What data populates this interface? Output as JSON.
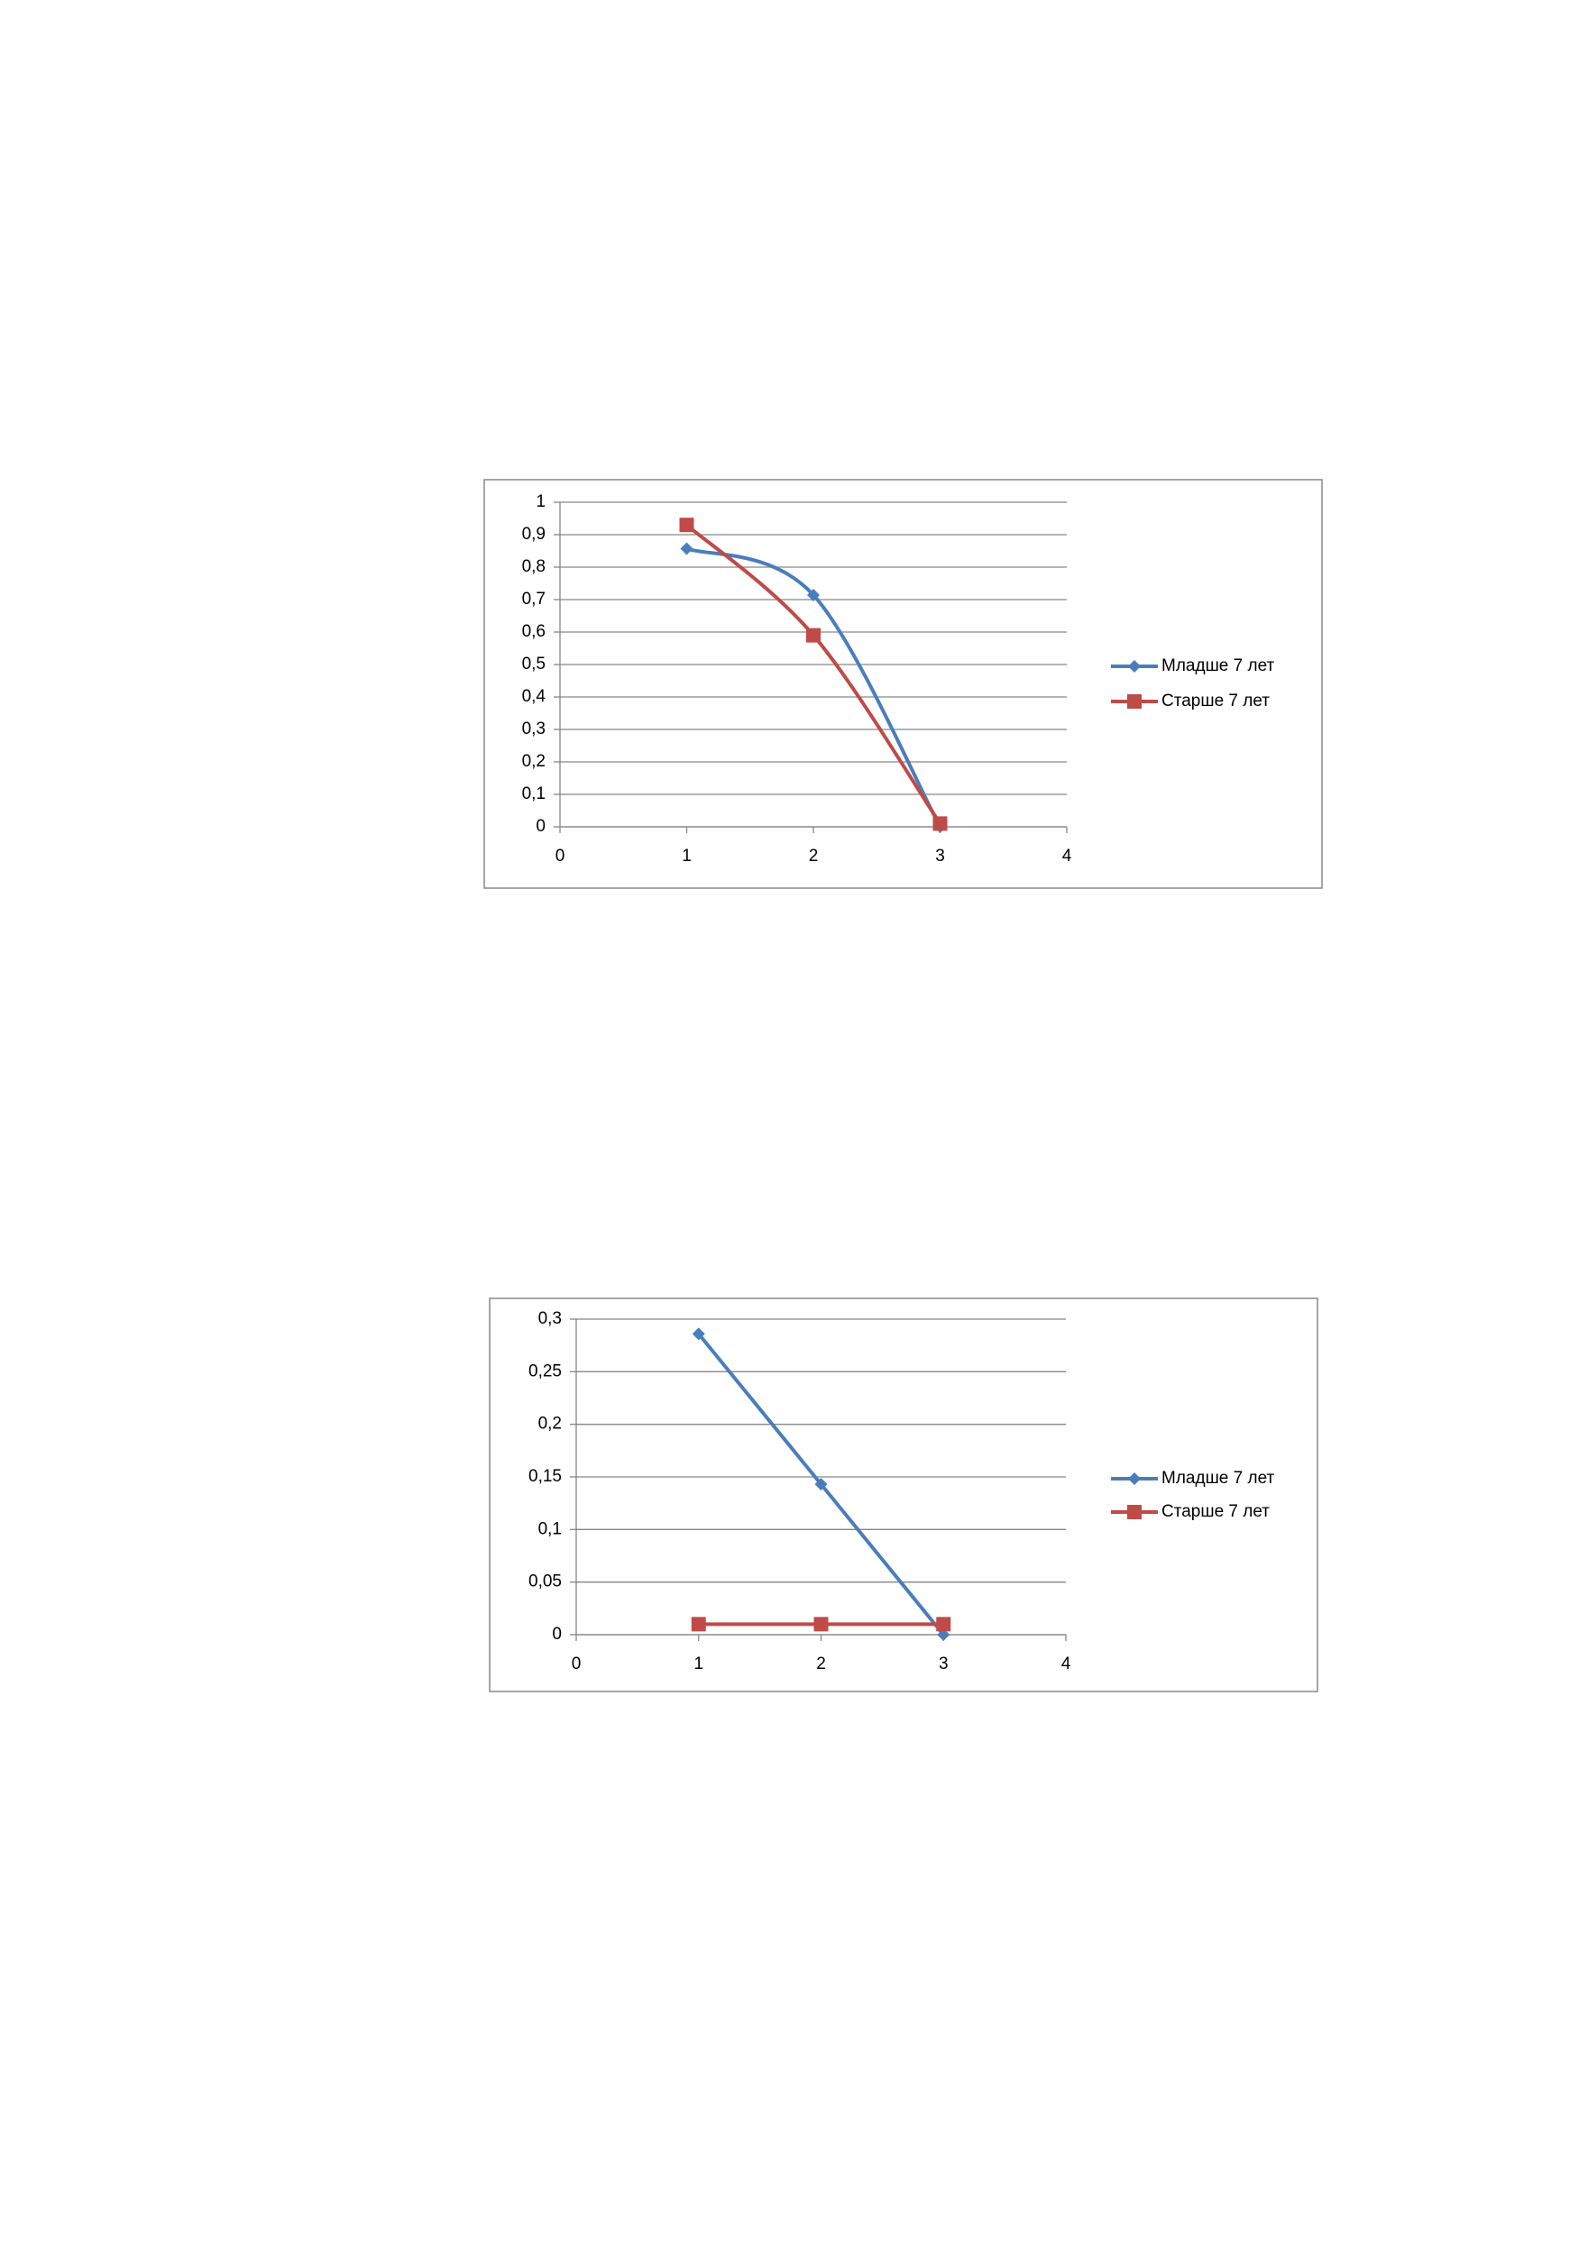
{
  "chart_data": [
    {
      "type": "line",
      "smooth": true,
      "x": [
        1,
        2,
        3
      ],
      "series": [
        {
          "name": "Младше 7 лет",
          "color": "#4a7ebb",
          "marker": "diamond",
          "values": [
            0.857,
            0.714,
            0
          ]
        },
        {
          "name": "Старше 7 лет",
          "color": "#be4b48",
          "marker": "square",
          "values": [
            0.93,
            0.59,
            0.01
          ]
        }
      ],
      "xlim": [
        0,
        4
      ],
      "xticks": [
        0,
        1,
        2,
        3,
        4
      ],
      "ylim": [
        0,
        1
      ],
      "yticks": [
        0,
        {
          "value": 0.1,
          "label": "0,1"
        },
        {
          "value": 0.2,
          "label": "0,2"
        },
        {
          "value": 0.3,
          "label": "0,3"
        },
        {
          "value": 0.4,
          "label": "0,4"
        },
        {
          "value": 0.5,
          "label": "0,5"
        },
        {
          "value": 0.6,
          "label": "0,6"
        },
        {
          "value": 0.7,
          "label": "0,7"
        },
        {
          "value": 0.8,
          "label": "0,8"
        },
        {
          "value": 0.9,
          "label": "0,9"
        },
        1
      ],
      "grid": true,
      "legend": "right"
    },
    {
      "type": "line",
      "smooth": false,
      "x": [
        1,
        2,
        3
      ],
      "series": [
        {
          "name": "Младше 7 лет",
          "color": "#4a7ebb",
          "marker": "diamond",
          "values": [
            0.286,
            0.143,
            0
          ]
        },
        {
          "name": "Старше 7 лет",
          "color": "#be4b48",
          "marker": "square",
          "values": [
            0.01,
            0.01,
            0.01
          ]
        }
      ],
      "xlim": [
        0,
        4
      ],
      "xticks": [
        0,
        1,
        2,
        3,
        4
      ],
      "ylim": [
        0,
        0.3
      ],
      "yticks": [
        0,
        {
          "value": 0.05,
          "label": "0,05"
        },
        {
          "value": 0.1,
          "label": "0,1"
        },
        {
          "value": 0.15,
          "label": "0,15"
        },
        {
          "value": 0.2,
          "label": "0,2"
        },
        {
          "value": 0.25,
          "label": "0,25"
        },
        {
          "value": 0.3,
          "label": "0,3"
        }
      ],
      "grid": true,
      "legend": "right"
    }
  ]
}
